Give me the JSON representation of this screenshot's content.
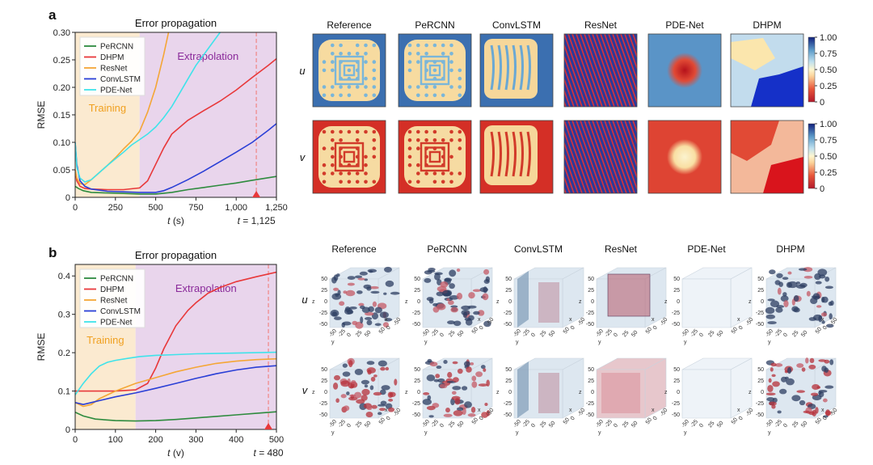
{
  "panel_a": {
    "letter": "a",
    "fields": [
      "u",
      "v"
    ],
    "columns": [
      "Reference",
      "PeRCNN",
      "ConvLSTM",
      "ResNet",
      "PDE-Net",
      "DHPM"
    ],
    "colorbar_ticks": [
      "1.00",
      "0.75",
      "0.50",
      "0.25",
      "0"
    ]
  },
  "panel_b": {
    "letter": "b",
    "fields": [
      "u",
      "v"
    ],
    "columns": [
      "Reference",
      "PeRCNN",
      "ConvLSTM",
      "ResNet",
      "PDE-Net",
      "DHPM"
    ],
    "cube_tick_labels": [
      "50",
      "25",
      "0",
      "-25",
      "-50"
    ],
    "cube_axis_labels": [
      "z",
      "y",
      "x"
    ]
  },
  "colors": {
    "PeRCNN": "#2e8b3e",
    "DHPM": "#e8383a",
    "ResNet": "#f4a636",
    "ConvLSTM": "#2a3fd6",
    "PDE-Net": "#3fe3ea",
    "training_bg": "#fbead0",
    "extrap_bg": "#e9d5ec",
    "marker": "#e8383a",
    "region_text_training": "#f0a020",
    "region_text_extrap": "#8a2a9a"
  },
  "chart_data": [
    {
      "type": "line",
      "title": "Error propagation",
      "xlabel_var": "t",
      "xlabel_unit": " (s)",
      "ylabel": "RMSE",
      "xlim": [
        0,
        1250
      ],
      "ylim": [
        0,
        0.3
      ],
      "xticks": [
        0,
        250,
        500,
        750,
        1000,
        1250
      ],
      "xtick_labels": [
        "0",
        "250",
        "500",
        "750",
        "1,000",
        "1,250"
      ],
      "yticks": [
        0,
        0.05,
        0.1,
        0.15,
        0.2,
        0.25,
        0.3
      ],
      "ytick_labels": [
        "0",
        "0.05",
        "0.10",
        "0.15",
        "0.20",
        "0.25",
        "0.30"
      ],
      "training_end": 400,
      "marker_x": 1125,
      "marker_label_var": "t",
      "marker_label_val": " = 1,125",
      "region_labels": {
        "training": "Training",
        "extrapolation": "Extrapolation"
      },
      "legend": [
        "PeRCNN",
        "DHPM",
        "ResNet",
        "ConvLSTM",
        "PDE-Net"
      ],
      "series": [
        {
          "name": "PeRCNN",
          "x": [
            0,
            20,
            50,
            100,
            200,
            300,
            400,
            500,
            600,
            700,
            800,
            900,
            1000,
            1100,
            1250
          ],
          "y": [
            0.02,
            0.016,
            0.012,
            0.009,
            0.008,
            0.007,
            0.006,
            0.006,
            0.009,
            0.014,
            0.018,
            0.022,
            0.026,
            0.031,
            0.038
          ]
        },
        {
          "name": "DHPM",
          "x": [
            0,
            10,
            30,
            60,
            100,
            200,
            300,
            400,
            450,
            500,
            550,
            600,
            700,
            800,
            900,
            1000,
            1100,
            1200,
            1250
          ],
          "y": [
            0.05,
            0.03,
            0.02,
            0.016,
            0.015,
            0.014,
            0.014,
            0.017,
            0.03,
            0.06,
            0.09,
            0.115,
            0.14,
            0.158,
            0.175,
            0.195,
            0.218,
            0.24,
            0.252
          ]
        },
        {
          "name": "ResNet",
          "x": [
            0,
            10,
            30,
            60,
            100,
            150,
            200,
            250,
            300,
            350,
            400,
            450,
            500,
            550,
            580
          ],
          "y": [
            0.05,
            0.035,
            0.025,
            0.023,
            0.032,
            0.045,
            0.058,
            0.072,
            0.088,
            0.102,
            0.12,
            0.155,
            0.2,
            0.26,
            0.3
          ]
        },
        {
          "name": "ConvLSTM",
          "x": [
            0,
            10,
            30,
            60,
            100,
            200,
            300,
            400,
            500,
            550,
            600,
            700,
            800,
            900,
            1000,
            1100,
            1200,
            1250
          ],
          "y": [
            0.1,
            0.06,
            0.03,
            0.02,
            0.015,
            0.011,
            0.01,
            0.009,
            0.009,
            0.012,
            0.018,
            0.032,
            0.048,
            0.065,
            0.082,
            0.1,
            0.122,
            0.134
          ]
        },
        {
          "name": "PDE-Net",
          "x": [
            0,
            10,
            30,
            60,
            100,
            150,
            200,
            250,
            300,
            350,
            400,
            450,
            500,
            550,
            600,
            650,
            700,
            750,
            800,
            850,
            900
          ],
          "y": [
            0.1,
            0.055,
            0.035,
            0.028,
            0.032,
            0.045,
            0.058,
            0.07,
            0.082,
            0.095,
            0.105,
            0.115,
            0.128,
            0.145,
            0.165,
            0.19,
            0.215,
            0.24,
            0.26,
            0.28,
            0.3
          ]
        }
      ]
    },
    {
      "type": "line",
      "title": "Error propagation",
      "xlabel_var": "t",
      "xlabel_unit": " (v)",
      "ylabel": "RMSE",
      "xlim": [
        0,
        500
      ],
      "ylim": [
        0,
        0.43
      ],
      "xticks": [
        0,
        100,
        200,
        300,
        400,
        500
      ],
      "xtick_labels": [
        "0",
        "100",
        "200",
        "300",
        "400",
        "500"
      ],
      "yticks": [
        0,
        0.1,
        0.2,
        0.3,
        0.4
      ],
      "ytick_labels": [
        "0",
        "0.1",
        "0.2",
        "0.3",
        "0.4"
      ],
      "training_end": 150,
      "marker_x": 480,
      "marker_label_var": "t",
      "marker_label_val": " = 480",
      "region_labels": {
        "training": "Training",
        "extrapolation": "Extrapolation"
      },
      "legend": [
        "PeRCNN",
        "DHPM",
        "ResNet",
        "ConvLSTM",
        "PDE-Net"
      ],
      "series": [
        {
          "name": "PeRCNN",
          "x": [
            0,
            20,
            50,
            100,
            150,
            200,
            250,
            300,
            350,
            400,
            450,
            500
          ],
          "y": [
            0.045,
            0.035,
            0.027,
            0.023,
            0.022,
            0.023,
            0.026,
            0.03,
            0.034,
            0.038,
            0.042,
            0.046
          ]
        },
        {
          "name": "DHPM",
          "x": [
            0,
            50,
            100,
            150,
            180,
            200,
            220,
            250,
            280,
            300,
            330,
            360,
            400,
            450,
            500
          ],
          "y": [
            0.1,
            0.1,
            0.1,
            0.103,
            0.12,
            0.16,
            0.21,
            0.27,
            0.31,
            0.33,
            0.355,
            0.37,
            0.385,
            0.398,
            0.41
          ]
        },
        {
          "name": "ResNet",
          "x": [
            0,
            20,
            40,
            60,
            100,
            150,
            200,
            250,
            300,
            350,
            400,
            450,
            500
          ],
          "y": [
            0.07,
            0.06,
            0.065,
            0.08,
            0.1,
            0.12,
            0.135,
            0.15,
            0.162,
            0.172,
            0.178,
            0.182,
            0.184
          ]
        },
        {
          "name": "ConvLSTM",
          "x": [
            0,
            20,
            40,
            60,
            100,
            150,
            200,
            250,
            300,
            350,
            400,
            450,
            500
          ],
          "y": [
            0.07,
            0.065,
            0.07,
            0.075,
            0.085,
            0.095,
            0.107,
            0.12,
            0.133,
            0.145,
            0.155,
            0.162,
            0.166
          ]
        },
        {
          "name": "PDE-Net",
          "x": [
            0,
            20,
            40,
            60,
            80,
            100,
            130,
            160,
            200,
            250,
            300,
            350,
            400,
            450,
            500
          ],
          "y": [
            0.09,
            0.12,
            0.145,
            0.165,
            0.175,
            0.18,
            0.185,
            0.19,
            0.193,
            0.195,
            0.197,
            0.198,
            0.199,
            0.2,
            0.201
          ]
        }
      ]
    }
  ]
}
